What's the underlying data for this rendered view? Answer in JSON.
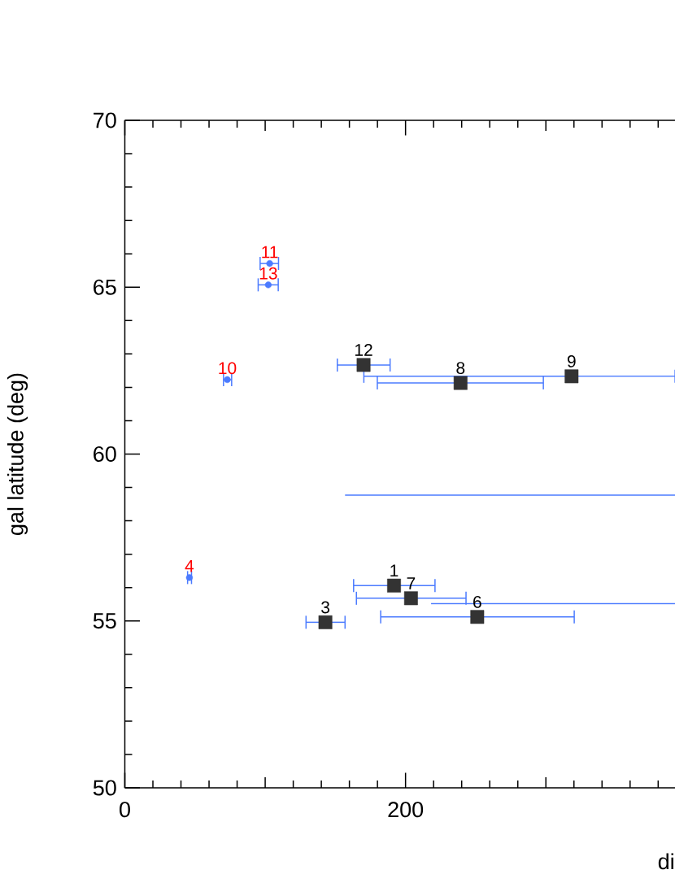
{
  "chart_data": {
    "type": "scatter",
    "xlabel": "di",
    "ylabel": "gal latitude (deg)",
    "xlim": [
      0,
      392
    ],
    "ylim": [
      50,
      70
    ],
    "xticks": [
      0,
      {
        "value": 20,
        "label": null
      },
      {
        "value": 40,
        "label": null
      },
      {
        "value": 60,
        "label": null
      },
      {
        "value": 80,
        "label": null
      },
      {
        "value": 100,
        "label": null
      },
      {
        "value": 120,
        "label": null
      },
      {
        "value": 140,
        "label": null
      },
      {
        "value": 160,
        "label": null
      },
      {
        "value": 180,
        "label": null
      },
      200,
      {
        "value": 220,
        "label": null
      },
      {
        "value": 240,
        "label": null
      },
      {
        "value": 260,
        "label": null
      },
      {
        "value": 280,
        "label": null
      },
      {
        "value": 300,
        "label": null
      },
      {
        "value": 320,
        "label": null
      },
      {
        "value": 340,
        "label": null
      },
      {
        "value": 360,
        "label": null
      },
      {
        "value": 380,
        "label": null
      }
    ],
    "yticks": [
      50,
      {
        "value": 51,
        "label": null
      },
      {
        "value": 52,
        "label": null
      },
      {
        "value": 53,
        "label": null
      },
      {
        "value": 54,
        "label": null
      },
      55,
      {
        "value": 56,
        "label": null
      },
      {
        "value": 57,
        "label": null
      },
      {
        "value": 58,
        "label": null
      },
      {
        "value": 59,
        "label": null
      },
      60,
      {
        "value": 61,
        "label": null
      },
      {
        "value": 62,
        "label": null
      },
      {
        "value": 63,
        "label": null
      },
      {
        "value": 64,
        "label": null
      },
      65,
      {
        "value": 66,
        "label": null
      },
      {
        "value": 67,
        "label": null
      },
      {
        "value": 68,
        "label": null
      },
      {
        "value": 69,
        "label": null
      },
      70
    ],
    "series": [
      {
        "marker": "square",
        "color": "#333333",
        "x": [
          191.8,
          142.9,
          251.1,
          203.9,
          239.2,
          318.3,
          170.1
        ],
        "values": [
          56.06,
          54.96,
          55.12,
          55.68,
          62.13,
          62.33,
          62.67
        ],
        "xerrors": [
          [
            163,
            221
          ],
          [
            129.1,
            156.9
          ],
          [
            182.3,
            320.2
          ],
          [
            165,
            243.1
          ],
          [
            179.9,
            298.2
          ],
          [
            170.3,
            392
          ],
          [
            151.4,
            189
          ]
        ]
      },
      {
        "marker": "circle",
        "color": "#4b7bff",
        "x": [
          46,
          73,
          103.2,
          102.2
        ],
        "values": [
          56.3,
          62.23,
          65.71,
          65.07
        ],
        "xerrors": [
          [
            44.7,
            47.5
          ],
          [
            70.3,
            76.1
          ],
          [
            96.4,
            109.5
          ],
          [
            95,
            109.3
          ]
        ]
      },
      {
        "type": "line",
        "color": "#4b7bff",
        "x": [
          156.9,
          392
        ],
        "values": [
          58.77,
          58.77
        ]
      },
      {
        "type": "line",
        "color": "#4b7bff",
        "x": [
          218.2,
          392
        ],
        "values": [
          55.52,
          55.52
        ]
      }
    ],
    "annotations": [
      {
        "text": "1",
        "x": 191.8,
        "y": 56.06
      },
      {
        "text": "3",
        "x": 142.9,
        "y": 54.96
      },
      {
        "text": "4",
        "x": 46,
        "y": 56.3
      },
      {
        "text": "6",
        "x": 251.1,
        "y": 55.12
      },
      {
        "text": "7",
        "x": 203.9,
        "y": 55.68
      },
      {
        "text": "8",
        "x": 239.2,
        "y": 62.13
      },
      {
        "text": "9",
        "x": 318.3,
        "y": 62.33
      },
      {
        "text": "10",
        "x": 73,
        "y": 62.23
      },
      {
        "text": "11",
        "x": 103.2,
        "y": 65.71
      },
      {
        "text": "12",
        "x": 170.1,
        "y": 62.67
      },
      {
        "text": "13",
        "x": 102.2,
        "y": 65.07
      }
    ]
  }
}
